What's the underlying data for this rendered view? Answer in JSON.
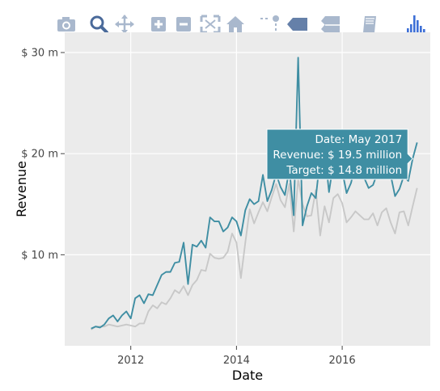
{
  "toolbar": {
    "buttons": [
      {
        "name": "camera-icon",
        "label": "Download plot as a png"
      },
      {
        "name": "zoom-icon",
        "label": "Zoom"
      },
      {
        "name": "pan-icon",
        "label": "Pan"
      },
      {
        "name": "zoom-in-icon",
        "label": "Zoom in"
      },
      {
        "name": "zoom-out-icon",
        "label": "Zoom out"
      },
      {
        "name": "autoscale-icon",
        "label": "Autoscale"
      },
      {
        "name": "home-icon",
        "label": "Reset axes"
      },
      {
        "name": "spike-lines-icon",
        "label": "Toggle Spike Lines"
      },
      {
        "name": "hover-closest-icon",
        "label": "Show closest data on hover"
      },
      {
        "name": "hover-compare-icon",
        "label": "Compare data on hover"
      },
      {
        "name": "book-icon",
        "label": "Collaborate"
      },
      {
        "name": "plotly-logo-icon",
        "label": "Produced with Plotly"
      }
    ],
    "active_color": "#4a6a9a",
    "icon_color": "#a9b8cd"
  },
  "chart_data": {
    "type": "line",
    "title": "",
    "xlabel": "Date",
    "ylabel": "Revenue",
    "x_range": [
      "2010-10",
      "2017-09"
    ],
    "ylim": [
      1,
      32
    ],
    "x_ticks": [
      "2012",
      "2014",
      "2016"
    ],
    "x_tick_values": [
      "2012-01",
      "2014-01",
      "2016-01"
    ],
    "y_ticks": [
      "$ 10 m",
      "$ 20 m",
      "$ 30 m"
    ],
    "y_tick_values": [
      10,
      20,
      30
    ],
    "grid": true,
    "background": "#ebebeb",
    "x": [
      "2011-04",
      "2011-05",
      "2011-06",
      "2011-07",
      "2011-08",
      "2011-09",
      "2011-10",
      "2011-11",
      "2011-12",
      "2012-01",
      "2012-02",
      "2012-03",
      "2012-04",
      "2012-05",
      "2012-06",
      "2012-07",
      "2012-08",
      "2012-09",
      "2012-10",
      "2012-11",
      "2012-12",
      "2013-01",
      "2013-02",
      "2013-03",
      "2013-04",
      "2013-05",
      "2013-06",
      "2013-07",
      "2013-08",
      "2013-09",
      "2013-10",
      "2013-11",
      "2013-12",
      "2014-01",
      "2014-02",
      "2014-03",
      "2014-04",
      "2014-05",
      "2014-06",
      "2014-07",
      "2014-08",
      "2014-09",
      "2014-10",
      "2014-11",
      "2014-12",
      "2015-01",
      "2015-02",
      "2015-03",
      "2015-04",
      "2015-05",
      "2015-06",
      "2015-07",
      "2015-08",
      "2015-09",
      "2015-10",
      "2015-11",
      "2015-12",
      "2016-01",
      "2016-02",
      "2016-03",
      "2016-04",
      "2016-05",
      "2016-06",
      "2016-07",
      "2016-08",
      "2016-09",
      "2016-10",
      "2016-11",
      "2016-12",
      "2017-01",
      "2017-02",
      "2017-03",
      "2017-04",
      "2017-05",
      "2017-06"
    ],
    "series": [
      {
        "name": "Revenue",
        "color": "#3f8ea3",
        "values": [
          2.7,
          2.9,
          2.8,
          3.1,
          3.7,
          4.0,
          3.4,
          4.0,
          4.4,
          3.7,
          5.7,
          6.0,
          5.2,
          6.1,
          6.0,
          7.0,
          8.0,
          8.3,
          8.3,
          9.2,
          9.3,
          11.2,
          7.1,
          11.0,
          10.8,
          11.4,
          10.7,
          13.7,
          13.3,
          13.3,
          12.3,
          12.7,
          13.7,
          13.3,
          11.9,
          14.4,
          15.5,
          15.0,
          15.3,
          17.9,
          15.3,
          16.4,
          18.0,
          16.7,
          15.9,
          18.5,
          13.9,
          29.5,
          12.9,
          14.8,
          16.1,
          15.6,
          19.6,
          20.5,
          16.2,
          19.1,
          20.3,
          18.3,
          16.1,
          17.1,
          18.9,
          19.3,
          17.6,
          16.6,
          16.9,
          18.1,
          20.2,
          18.4,
          17.9,
          15.8,
          16.5,
          17.8,
          17.3,
          19.5,
          21.1
        ]
      },
      {
        "name": "Target",
        "color": "#c8c8c8",
        "values": [
          2.6,
          2.9,
          2.9,
          2.9,
          3.1,
          3.0,
          2.9,
          3.0,
          3.1,
          3.0,
          2.9,
          3.2,
          3.2,
          4.4,
          5.0,
          4.7,
          5.3,
          5.1,
          5.7,
          6.5,
          6.2,
          6.9,
          6.0,
          7.0,
          7.5,
          8.5,
          8.4,
          10.1,
          9.7,
          9.6,
          9.7,
          10.3,
          12.1,
          11.2,
          7.7,
          11.2,
          14.5,
          13.1,
          14.2,
          15.2,
          14.3,
          15.7,
          17.0,
          15.4,
          14.7,
          17.0,
          12.3,
          17.5,
          15.0,
          13.8,
          13.9,
          16.4,
          11.9,
          14.8,
          13.2,
          15.6,
          16.0,
          15.1,
          13.2,
          13.7,
          14.3,
          13.9,
          13.5,
          13.5,
          14.1,
          12.9,
          14.2,
          14.6,
          13.2,
          12.1,
          14.2,
          14.3,
          12.9,
          14.8,
          16.6
        ]
      }
    ],
    "hover": {
      "date_label": "Date: May 2017",
      "revenue_label": "Revenue: $ 19.5 million",
      "target_label": "Target: $ 14.8 million",
      "color": "#3f8ea3",
      "anchor_x": "2017-05",
      "anchor_y": 19.5
    }
  }
}
